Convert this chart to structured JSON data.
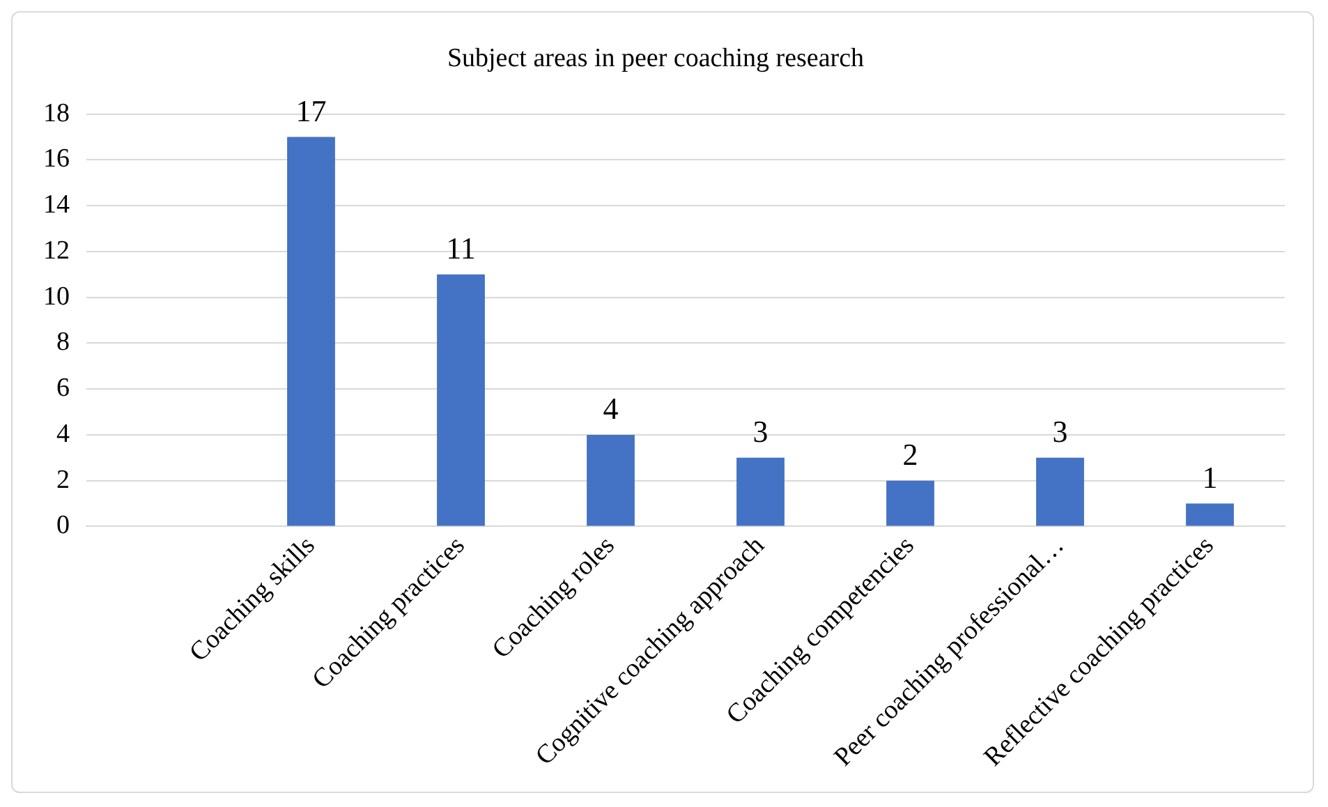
{
  "chart_data": {
    "type": "bar",
    "title": "Subject areas in peer coaching research",
    "categories": [
      null,
      "Coaching skills",
      "Coaching practices",
      "Coaching roles",
      "Cognitive coaching approach",
      "Coaching competencies",
      "Peer coaching professional…",
      "Reflective coaching practices"
    ],
    "values": [
      null,
      17,
      11,
      4,
      3,
      2,
      3,
      1
    ],
    "color": "#4472c4",
    "ylim": [
      0,
      18
    ],
    "yticks": [
      0,
      2,
      4,
      6,
      8,
      10,
      12,
      14,
      16,
      18
    ],
    "grid": "y",
    "data_labels": true,
    "legend": false
  }
}
